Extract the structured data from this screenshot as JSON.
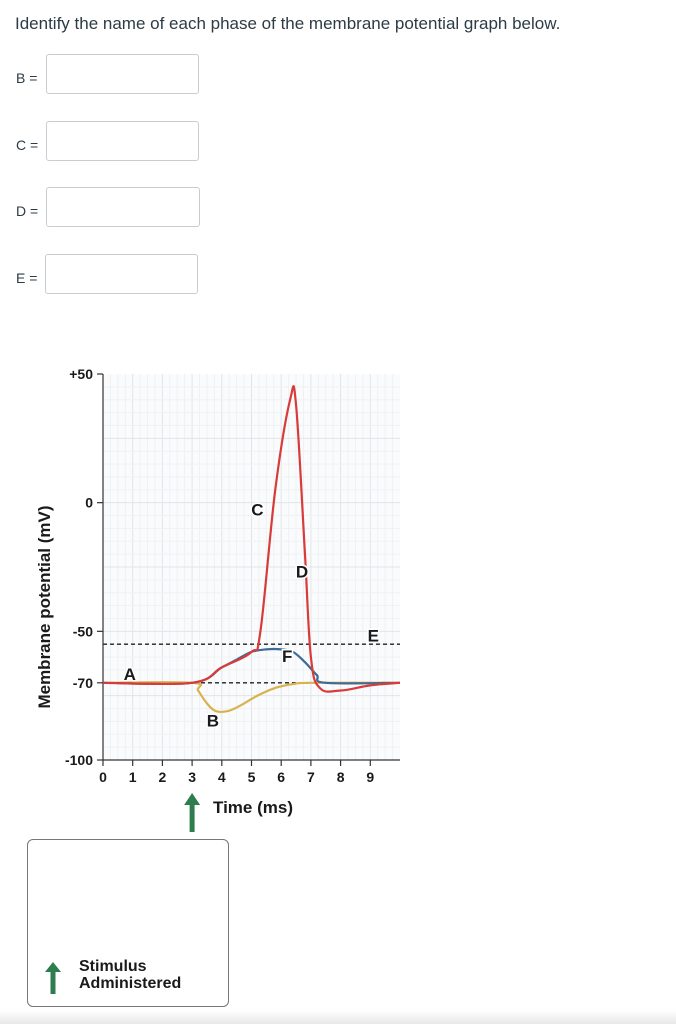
{
  "question": "Identify the name of each phase of the membrane potential graph below.",
  "answers": [
    {
      "label": "B =",
      "value": ""
    },
    {
      "label": "C =",
      "value": ""
    },
    {
      "label": "D =",
      "value": ""
    },
    {
      "label": "E =",
      "value": ""
    }
  ],
  "chart_data": {
    "type": "line",
    "ylabel": "Membrane potential (mV)",
    "xlabel": "Time (ms)",
    "xlim": [
      0,
      10
    ],
    "ylim": [
      -100,
      50
    ],
    "x_ticks": [
      "0",
      "1",
      "2",
      "3",
      "4",
      "5",
      "6",
      "7",
      "8",
      "9"
    ],
    "y_ticks": [
      {
        "value": 50,
        "label": "+50"
      },
      {
        "value": 0,
        "label": "0"
      },
      {
        "value": -50,
        "label": "-50"
      },
      {
        "value": -70,
        "label": "-70"
      },
      {
        "value": -100,
        "label": "-100"
      }
    ],
    "reference_lines": [
      -55,
      -70
    ],
    "series": [
      {
        "color": "#d93a3a",
        "x": [
          0,
          3,
          4,
          5,
          5.3,
          5.8,
          6.3,
          6.5,
          6.8,
          7.0,
          7.3,
          8.0,
          9.0,
          10.0
        ],
        "y": [
          -70,
          -70,
          -64,
          -58,
          -50,
          5,
          40,
          38,
          -20,
          -60,
          -72,
          -73,
          -71,
          -70
        ]
      },
      {
        "color": "#3e6a96",
        "x": [
          0,
          3,
          4,
          4.5,
          5,
          5.5,
          6.0,
          6.4,
          6.8,
          7.2,
          7.5,
          10
        ],
        "y": [
          -70,
          -70,
          -64,
          -61,
          -58,
          -57,
          -57,
          -58,
          -62,
          -67,
          -70,
          -70
        ]
      },
      {
        "color": "#d8b24f",
        "x": [
          0,
          3,
          3.2,
          3.5,
          3.8,
          4.2,
          4.6,
          5.2,
          5.8,
          6.4,
          7,
          10
        ],
        "y": [
          -70,
          -70,
          -73,
          -78,
          -81,
          -81,
          -79,
          -75,
          -72,
          -70.5,
          -70,
          -70
        ]
      }
    ],
    "annotations": [
      {
        "text": "A",
        "x": 0.9,
        "y": -69
      },
      {
        "text": "B",
        "x": 3.7,
        "y": -87
      },
      {
        "text": "C",
        "x": 5.2,
        "y": -5
      },
      {
        "text": "D",
        "x": 6.7,
        "y": -29
      },
      {
        "text": "E",
        "x": 9.1,
        "y": -54
      },
      {
        "text": "F",
        "x": 6.2,
        "y": -62
      }
    ],
    "stimulus_x": 3,
    "colors": {
      "stimulus_arrow": "#2e7d4f"
    }
  },
  "legend": {
    "line1": "Stimulus",
    "line2": "Administered"
  }
}
